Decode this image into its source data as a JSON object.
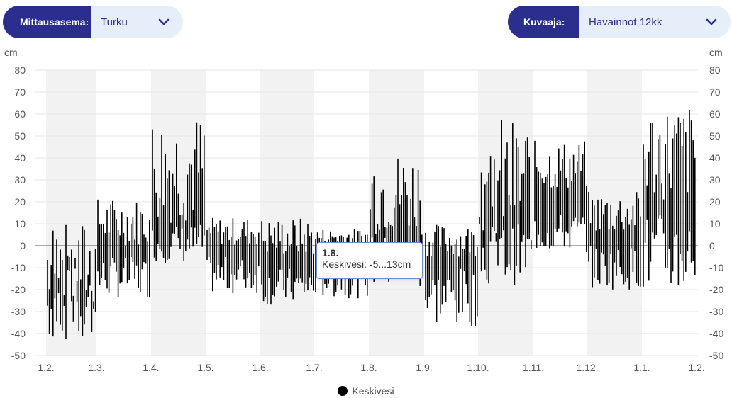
{
  "selectors": {
    "station": {
      "label": "Mittausasema:",
      "value": "Turku"
    },
    "graph": {
      "label": "Kuvaaja:",
      "value": "Havainnot 12kk"
    }
  },
  "tooltip": {
    "title": "1.8.",
    "text": "Keskivesi: -5...13cm"
  },
  "legend": {
    "label": "Keskivesi"
  },
  "colors": {
    "accent": "#2b2e8c",
    "selector_bg": "#e6eefa",
    "band": "#f2f2f2",
    "bars": "#000000"
  },
  "chart_data": {
    "type": "bar",
    "y_unit_left": "cm",
    "y_unit_right": "cm",
    "ylim": [
      -50,
      80
    ],
    "yticks": [
      80,
      70,
      60,
      50,
      40,
      30,
      20,
      10,
      0,
      -10,
      -20,
      -30,
      -40,
      -50
    ],
    "x_ticks": [
      "1.2.",
      "1.3.",
      "1.4.",
      "1.5.",
      "1.6.",
      "1.7.",
      "1.8.",
      "1.9.",
      "1.10.",
      "1.11.",
      "1.12.",
      "1.1.",
      "1.2."
    ],
    "series": [
      {
        "name": "Keskivesi",
        "segment_ranges": [
          {
            "from": "1.2.",
            "to": "1.3.",
            "low": [
              -44,
              -10
            ],
            "high": [
              -30,
              12
            ]
          },
          {
            "from": "1.3.",
            "to": "1.4.",
            "low": [
              -24,
              -5
            ],
            "high": [
              0,
              22
            ]
          },
          {
            "from": "1.4.",
            "to": "1.5.",
            "low": [
              -8,
              10
            ],
            "high": [
              10,
              61
            ]
          },
          {
            "from": "1.5.",
            "to": "1.6.",
            "low": [
              -22,
              -5
            ],
            "high": [
              0,
              13
            ]
          },
          {
            "from": "1.6.",
            "to": "1.7.",
            "low": [
              -27,
              -10
            ],
            "high": [
              -5,
              13
            ]
          },
          {
            "from": "1.7.",
            "to": "1.8.",
            "low": [
              -24,
              -5
            ],
            "high": [
              0,
              8
            ]
          },
          {
            "from": "1.8.",
            "to": "1.9.",
            "low": [
              -20,
              5
            ],
            "high": [
              5,
              44
            ]
          },
          {
            "from": "1.9.",
            "to": "1.10.",
            "low": [
              -37,
              -10
            ],
            "high": [
              -5,
              10
            ]
          },
          {
            "from": "1.10.",
            "to": "1.11.",
            "low": [
              -18,
              10
            ],
            "high": [
              0,
              59
            ]
          },
          {
            "from": "1.11.",
            "to": "1.12.",
            "low": [
              -3,
              15
            ],
            "high": [
              25,
              48
            ]
          },
          {
            "from": "1.12.",
            "to": "1.1.",
            "low": [
              -20,
              0
            ],
            "high": [
              5,
              25
            ]
          },
          {
            "from": "1.1.",
            "to": "1.2.",
            "low": [
              -23,
              15
            ],
            "high": [
              20,
              65
            ]
          }
        ]
      }
    ],
    "grid": true,
    "legend_position": "bottom-center"
  }
}
